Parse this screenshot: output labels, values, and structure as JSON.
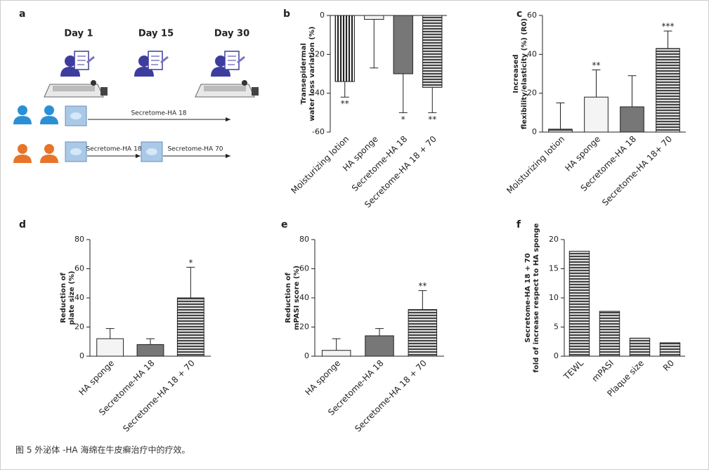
{
  "diagram": {
    "panel": "a",
    "days": [
      "Day 1",
      "Day 15",
      "Day 30"
    ],
    "group1": "Secretome-HA 18",
    "group2": [
      "Secretome-HA 18",
      "Secretome-HA 70"
    ]
  },
  "caption": "图 5 外泌体 -HA 海绵在牛皮癣治疗中的疗效。",
  "chart_data": [
    {
      "type": "bar",
      "panel": "b",
      "ylabel": [
        "Transepidermal",
        "water loss variation (%)"
      ],
      "categories": [
        "Moisturizing lotion",
        "HA sponge",
        "Secretome-HA 18",
        "Secretome-HA 18 + 70"
      ],
      "values": [
        -34,
        -2,
        -30,
        -37
      ],
      "errors": [
        8,
        25,
        20,
        13
      ],
      "significance": [
        "**",
        null,
        "*",
        "**"
      ],
      "patterns": [
        "vstripe",
        "white",
        "gray",
        "hstripe"
      ],
      "ylim": [
        -60,
        0
      ],
      "yticks": [
        -60,
        -40,
        -20,
        0
      ]
    },
    {
      "type": "bar",
      "panel": "c",
      "ylabel": [
        "Increased",
        "flexibility/elasticity (%) (R0)"
      ],
      "categories": [
        "Moisturizing lotion",
        "HA sponge",
        "Secretome-HA 18",
        "Secretome-HA 18+ 70"
      ],
      "values": [
        1.5,
        18,
        13,
        43
      ],
      "errors": [
        13.5,
        14,
        16,
        9
      ],
      "significance": [
        null,
        "**",
        null,
        "***"
      ],
      "patterns": [
        "hstripe",
        "white",
        "gray",
        "hstripe"
      ],
      "ylim": [
        0,
        60
      ],
      "yticks": [
        0,
        20,
        40,
        60
      ]
    },
    {
      "type": "bar",
      "panel": "d",
      "ylabel": [
        "Reduction of",
        "plate size (%)"
      ],
      "categories": [
        "HA sponge",
        "Secretome-HA 18",
        "Secretome-HA 18 + 70"
      ],
      "values": [
        12,
        8,
        40
      ],
      "errors": [
        7,
        4,
        21
      ],
      "significance": [
        null,
        null,
        "*"
      ],
      "patterns": [
        "white",
        "gray",
        "hstripe"
      ],
      "ylim": [
        0,
        80
      ],
      "yticks": [
        0,
        20,
        40,
        60,
        80
      ]
    },
    {
      "type": "bar",
      "panel": "e",
      "ylabel": [
        "Reduction of",
        "mPASI score (%)"
      ],
      "categories": [
        "HA sponge",
        "Secretome-HA 18",
        "Secretome-HA 18 + 70"
      ],
      "values": [
        4,
        14,
        32
      ],
      "errors": [
        8,
        5,
        13
      ],
      "significance": [
        null,
        null,
        "**"
      ],
      "patterns": [
        "white",
        "gray",
        "hstripe"
      ],
      "ylim": [
        0,
        80
      ],
      "yticks": [
        0,
        20,
        40,
        60,
        80
      ]
    },
    {
      "type": "bar",
      "panel": "f",
      "ylabel": [
        "Secretome-HA 18 + 70",
        "fold of increase respect to HA sponge"
      ],
      "categories": [
        "TEWL",
        "mPASI",
        "Plaque size",
        "R0"
      ],
      "values": [
        18,
        7.7,
        3.1,
        2.3
      ],
      "patterns": [
        "hstripe",
        "hstripe",
        "hstripe",
        "hstripe"
      ],
      "ylim": [
        0,
        20
      ],
      "yticks": [
        0,
        5,
        10,
        15,
        20
      ]
    }
  ]
}
